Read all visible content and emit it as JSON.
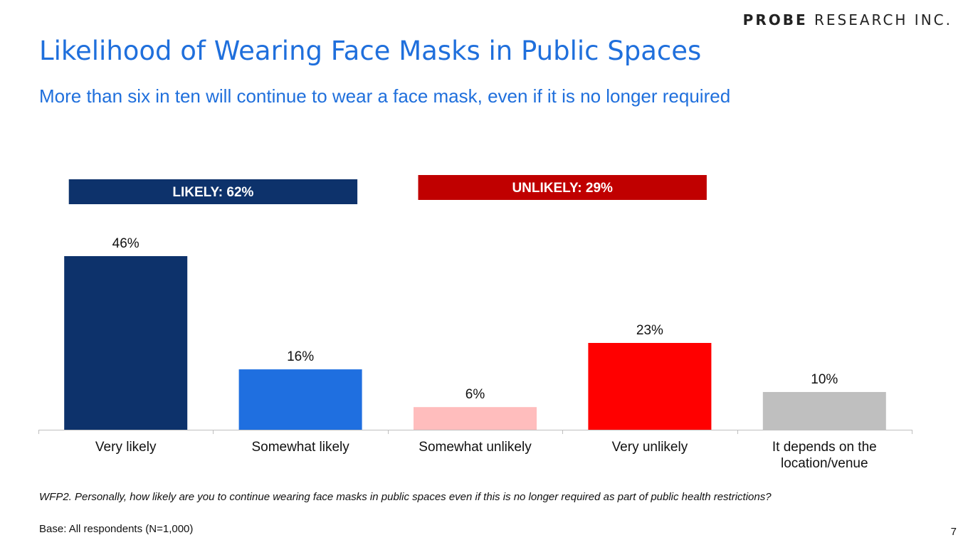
{
  "logo": {
    "brand": "PROBE",
    "rest": "RESEARCH INC."
  },
  "title": "Likelihood of Wearing Face Masks in Public Spaces",
  "subtitle": "More than six in ten will continue to wear a face mask, even if it is no longer required",
  "chart_data": {
    "type": "bar",
    "categories": [
      "Very likely",
      "Somewhat likely",
      "Somewhat unlikely",
      "Very unlikely",
      "It depends on the location/venue"
    ],
    "values": [
      46,
      16,
      6,
      23,
      10
    ],
    "value_labels": [
      "46%",
      "16%",
      "6%",
      "23%",
      "10%"
    ],
    "colors": [
      "#0d326b",
      "#1f6fe0",
      "#ffbdbd",
      "#ff0000",
      "#bfbfbf"
    ],
    "ylim": [
      0,
      50
    ],
    "grid": false,
    "legend": "none",
    "annotations": [
      {
        "label": "LIKELY: 62%",
        "spans": [
          "Very likely",
          "Somewhat likely"
        ],
        "color": "#0d326b"
      },
      {
        "label": "UNLIKELY: 29%",
        "spans": [
          "Somewhat unlikely",
          "Very unlikely"
        ],
        "color": "#c00000"
      }
    ]
  },
  "footnote": "WFP2. Personally, how likely are you to continue wearing face masks in public spaces even if this is no longer required as part of public health restrictions?",
  "base": "Base:  All respondents (N=1,000)",
  "page_number": "7"
}
